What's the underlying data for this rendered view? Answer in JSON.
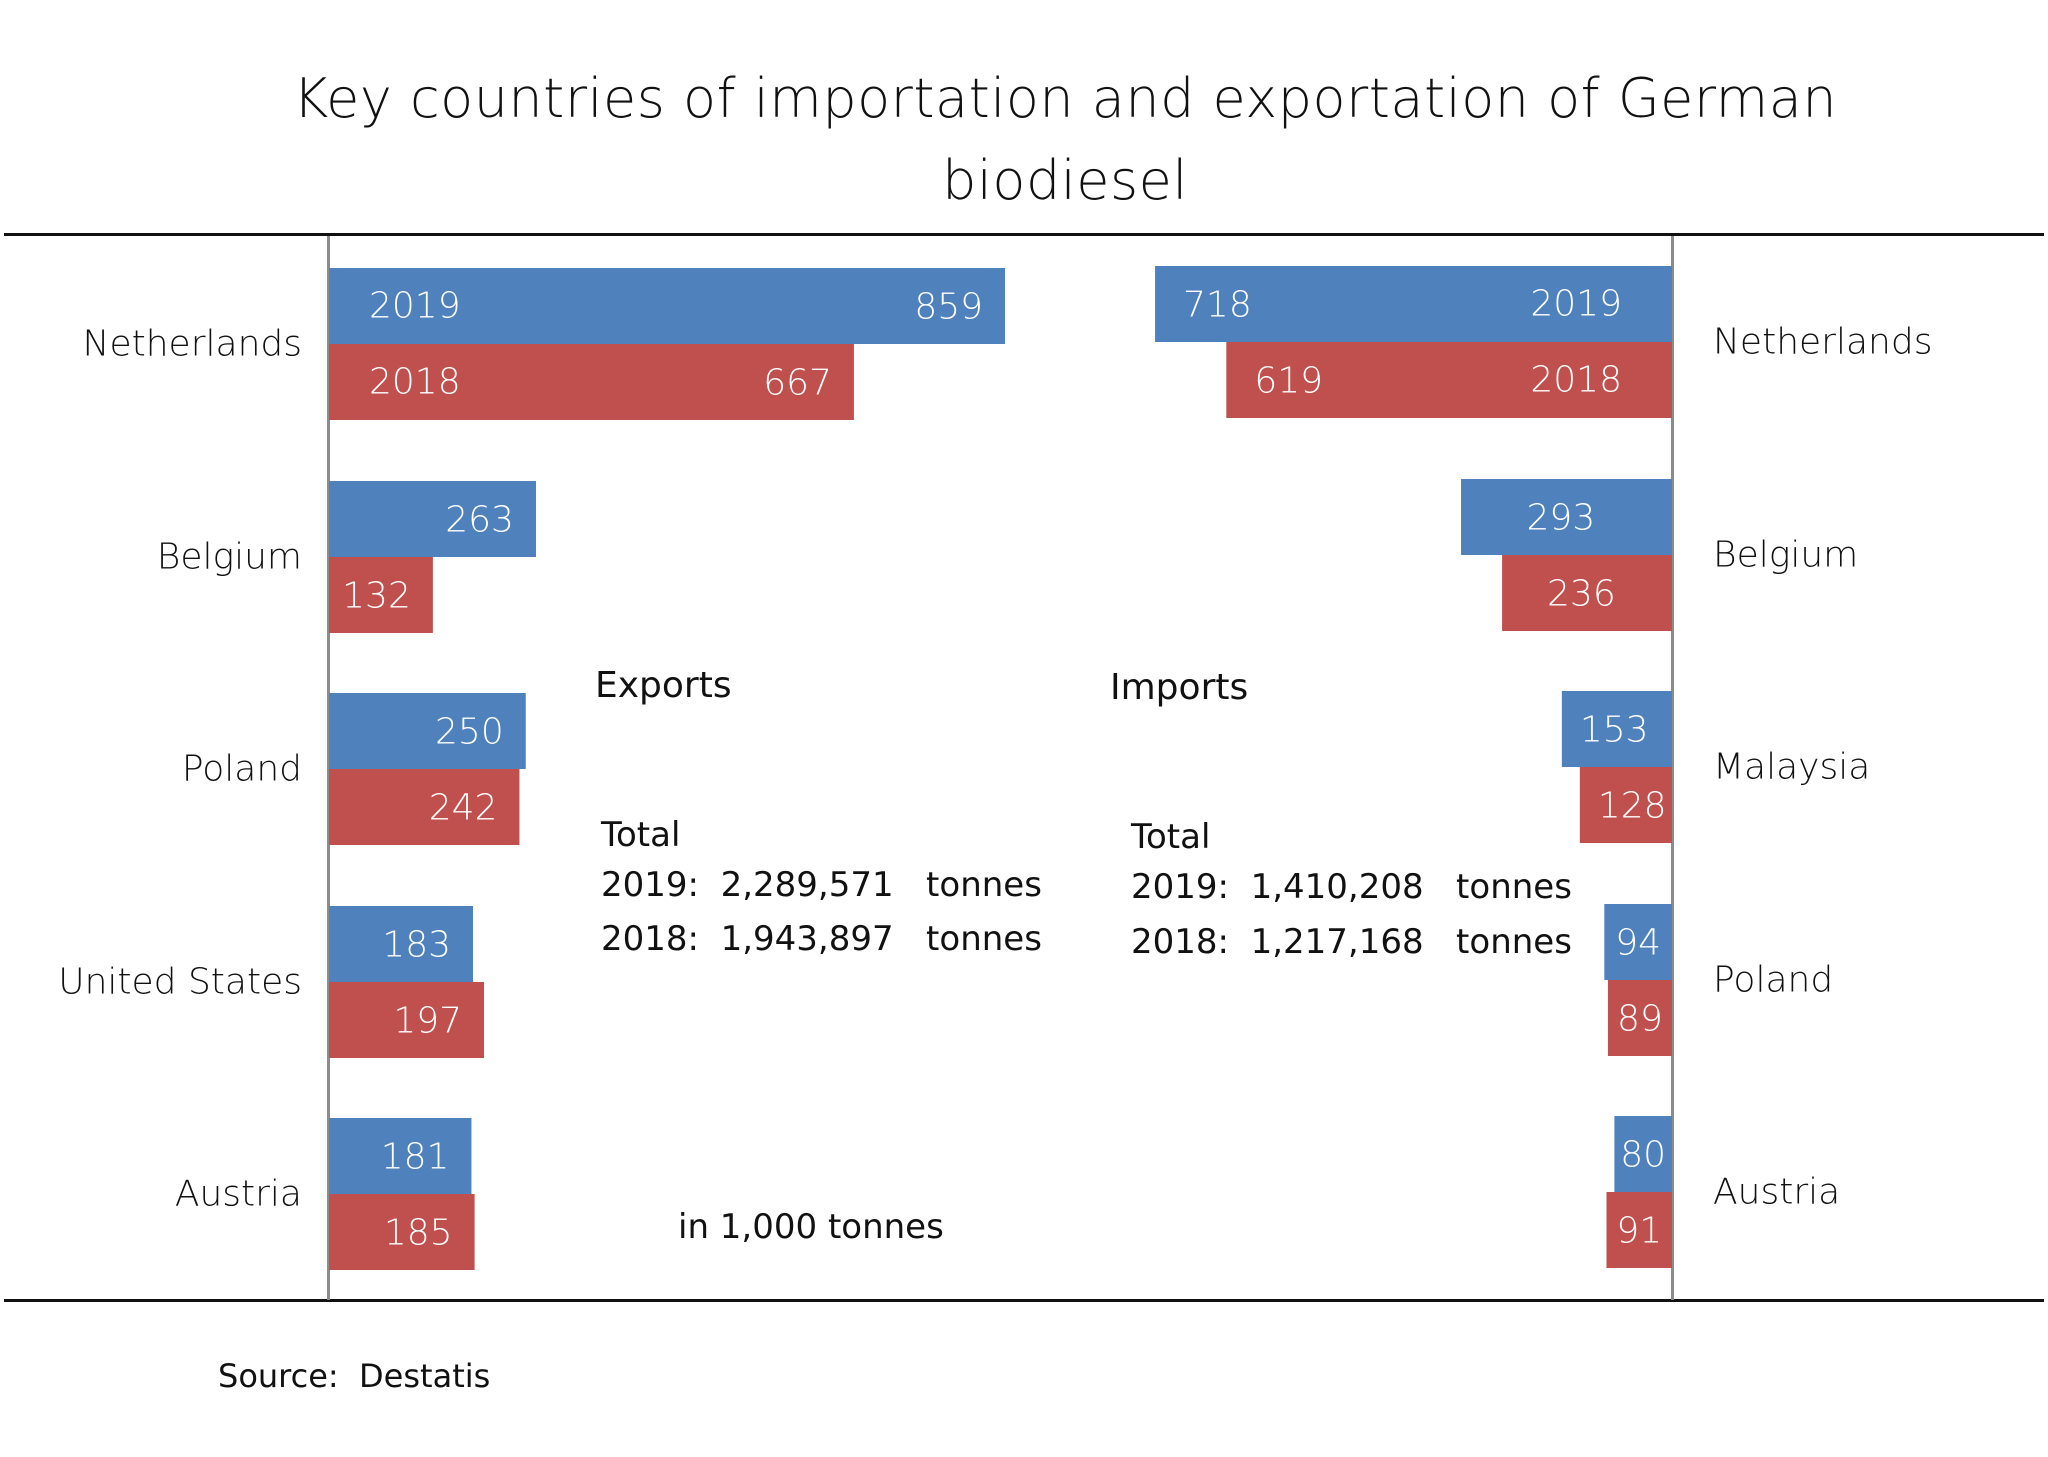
{
  "chart_data": {
    "type": "bar",
    "title": "Key countries of importation and exportation of German biodiesel",
    "title_lines": [
      "Key countries of importation and exportation of German",
      "biodiesel"
    ],
    "unit_note": "in 1,000 tonnes",
    "source": "Source:  Destatis",
    "legend_years": [
      "2019",
      "2018"
    ],
    "colors": {
      "2019": "#4F81BD",
      "2018": "#C0504D"
    },
    "exports": {
      "label": "Exports",
      "direction": "left-to-right",
      "categories": [
        "Netherlands",
        "Belgium",
        "Poland",
        "United States",
        "Austria"
      ],
      "series": [
        {
          "name": "2019",
          "values": [
            859,
            263,
            250,
            183,
            181
          ]
        },
        {
          "name": "2018",
          "values": [
            667,
            132,
            242,
            197,
            185
          ]
        }
      ],
      "totals": {
        "heading": "Total",
        "lines": [
          "2019:  2,289,571   tonnes",
          "2018:  1,943,897   tonnes"
        ]
      }
    },
    "imports": {
      "label": "Imports",
      "direction": "right-to-left",
      "categories": [
        "Netherlands",
        "Belgium",
        "Malaysia",
        "Poland",
        "Austria"
      ],
      "series": [
        {
          "name": "2019",
          "values": [
            718,
            293,
            153,
            94,
            80
          ]
        },
        {
          "name": "2018",
          "values": [
            619,
            236,
            128,
            89,
            91
          ]
        }
      ],
      "totals": {
        "heading": "Total",
        "lines": [
          "2019:  1,410,208   tonnes",
          "2018:  1,217,168   tonnes"
        ]
      }
    }
  }
}
